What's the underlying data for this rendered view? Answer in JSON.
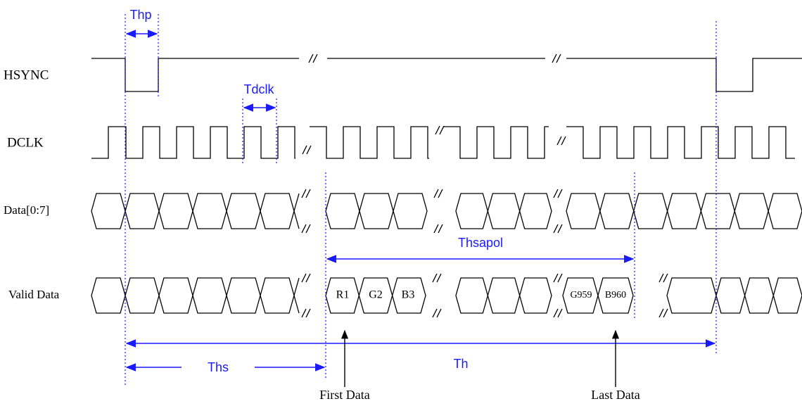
{
  "signals": [
    {
      "label": "HSYNC"
    },
    {
      "label": "DCLK"
    },
    {
      "label": "Data[0:7]"
    },
    {
      "label": "Valid Data"
    }
  ],
  "timings": {
    "thp": "Thp",
    "tdclk": "Tdclk",
    "thsapol": "Thsapol",
    "ths": "Ths",
    "th": "Th"
  },
  "valid_data_cells": [
    "R1",
    "G2",
    "B3",
    "G959",
    "B960"
  ],
  "annotations": {
    "first_data": "First Data",
    "last_data": "Last Data"
  }
}
